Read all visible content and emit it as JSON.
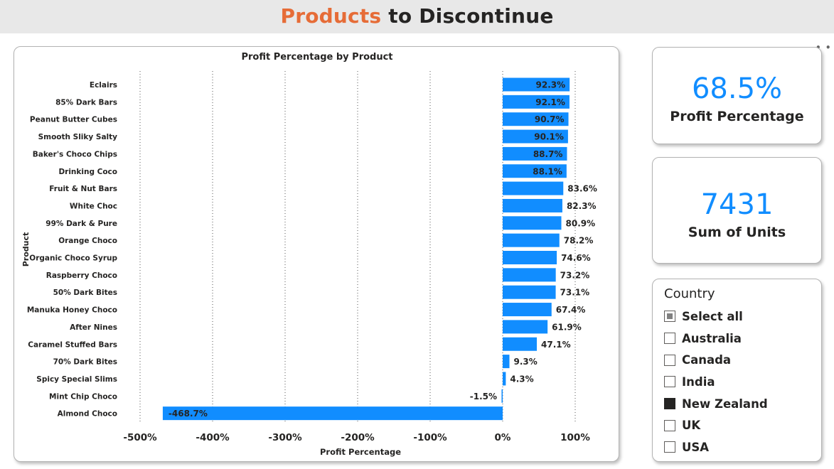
{
  "header": {
    "title_accent": "Products",
    "title_rest": " to Discontinue"
  },
  "kpis": [
    {
      "value": "68.5%",
      "label": "Profit Percentage"
    },
    {
      "value": "7431",
      "label": "Sum of Units"
    }
  ],
  "slicer": {
    "title": "Country",
    "items": [
      {
        "label": "Select all",
        "state": "partial"
      },
      {
        "label": "Australia",
        "state": "unchecked"
      },
      {
        "label": "Canada",
        "state": "unchecked"
      },
      {
        "label": "India",
        "state": "unchecked"
      },
      {
        "label": "New Zealand",
        "state": "checked"
      },
      {
        "label": "UK",
        "state": "unchecked"
      },
      {
        "label": "USA",
        "state": "unchecked"
      }
    ]
  },
  "chart_data": {
    "type": "bar",
    "orientation": "horizontal",
    "title": "Profit Percentage by Product",
    "xlabel": "Profit Percentage",
    "ylabel": "Product",
    "xlim": [
      -500,
      100
    ],
    "x_ticks": [
      -500,
      -400,
      -300,
      -200,
      -100,
      0,
      100
    ],
    "x_tick_labels": [
      "-500%",
      "-400%",
      "-300%",
      "-200%",
      "-100%",
      "0%",
      "100%"
    ],
    "grid": "vertical dotted",
    "bar_color": "#118dff",
    "categories": [
      "Eclairs",
      "85% Dark Bars",
      "Peanut Butter Cubes",
      "Smooth Sliky Salty",
      "Baker's Choco Chips",
      "Drinking Coco",
      "Fruit & Nut Bars",
      "White Choc",
      "99% Dark & Pure",
      "Orange Choco",
      "Organic Choco Syrup",
      "Raspberry Choco",
      "50% Dark Bites",
      "Manuka Honey Choco",
      "After Nines",
      "Caramel Stuffed Bars",
      "70% Dark Bites",
      "Spicy Special Slims",
      "Mint Chip Choco",
      "Almond Choco"
    ],
    "values": [
      92.3,
      92.1,
      90.7,
      90.1,
      88.7,
      88.1,
      83.6,
      82.3,
      80.9,
      78.2,
      74.6,
      73.2,
      73.1,
      67.4,
      61.9,
      47.1,
      9.3,
      4.3,
      -1.5,
      -468.7
    ],
    "value_labels": [
      "92.3%",
      "92.1%",
      "90.7%",
      "90.1%",
      "88.7%",
      "88.1%",
      "83.6%",
      "82.3%",
      "80.9%",
      "78.2%",
      "74.6%",
      "73.2%",
      "73.1%",
      "67.4%",
      "61.9%",
      "47.1%",
      "9.3%",
      "4.3%",
      "-1.5%",
      "-468.7%"
    ]
  }
}
